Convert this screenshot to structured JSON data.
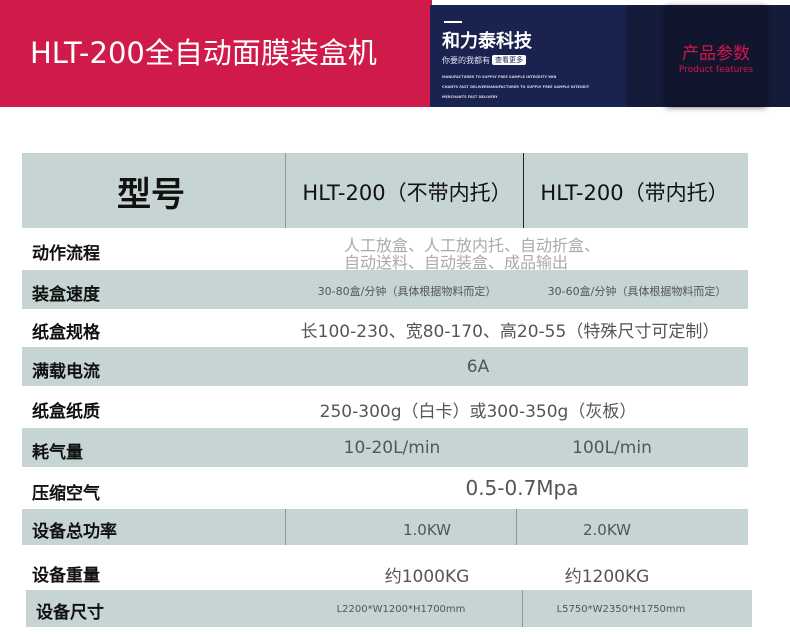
{
  "banner": {
    "title": "HLT-200全自动面膜装盒机",
    "brand": "和力泰科技",
    "slogan": "你要的我都有",
    "button": "查看更多",
    "tagline_lines": [
      "MANUFACTURER TO SUPPLY FREE SAMPLE INTEGRITY WIN",
      "CHANTS FAST DELIVERMANUFACTURER TO SUPPLY FREE SAMPLE INTEGRIT",
      "MERCHANTS FAST DELIVERY"
    ],
    "feature_cn": "产品参数",
    "feature_en": "Product features",
    "colors": {
      "red": "#cf1a4a",
      "navy": "#1a2350"
    }
  },
  "table": {
    "header": {
      "label": "型号",
      "col1": "HLT-200（不带内托）",
      "col2": "HLT-200（带内托）"
    },
    "rows": [
      {
        "label": "动作流程",
        "line1": "人工放盒、人工放内托、自动折盒、",
        "line2": "自动送料、自动装盒、成品输出"
      },
      {
        "label": "装盒速度",
        "col1": "30-80盒/分钟（具体根据物料而定）",
        "col2": "30-60盒/分钟（具体根据物料而定）"
      },
      {
        "label": "纸盒规格",
        "value": "长100-230、宽80-170、高20-55（特殊尺寸可定制）"
      },
      {
        "label": "满载电流",
        "value": "6A"
      },
      {
        "label": "纸盒纸质",
        "value": "250-300g（白卡）或300-350g（灰板）"
      },
      {
        "label": "耗气量",
        "col1": "10-20L/min",
        "col2": "100L/min"
      },
      {
        "label": "压缩空气",
        "value": "0.5-0.7Mpa"
      },
      {
        "label": "设备总功率",
        "col1": "1.0KW",
        "col2": "2.0KW"
      },
      {
        "label": "设备重量",
        "col1": "约1000KG",
        "col2": "约1200KG"
      },
      {
        "label": "设备尺寸",
        "col1": "L2200*W1200*H1700mm",
        "col2": "L5750*W2350*H1750mm"
      }
    ]
  }
}
